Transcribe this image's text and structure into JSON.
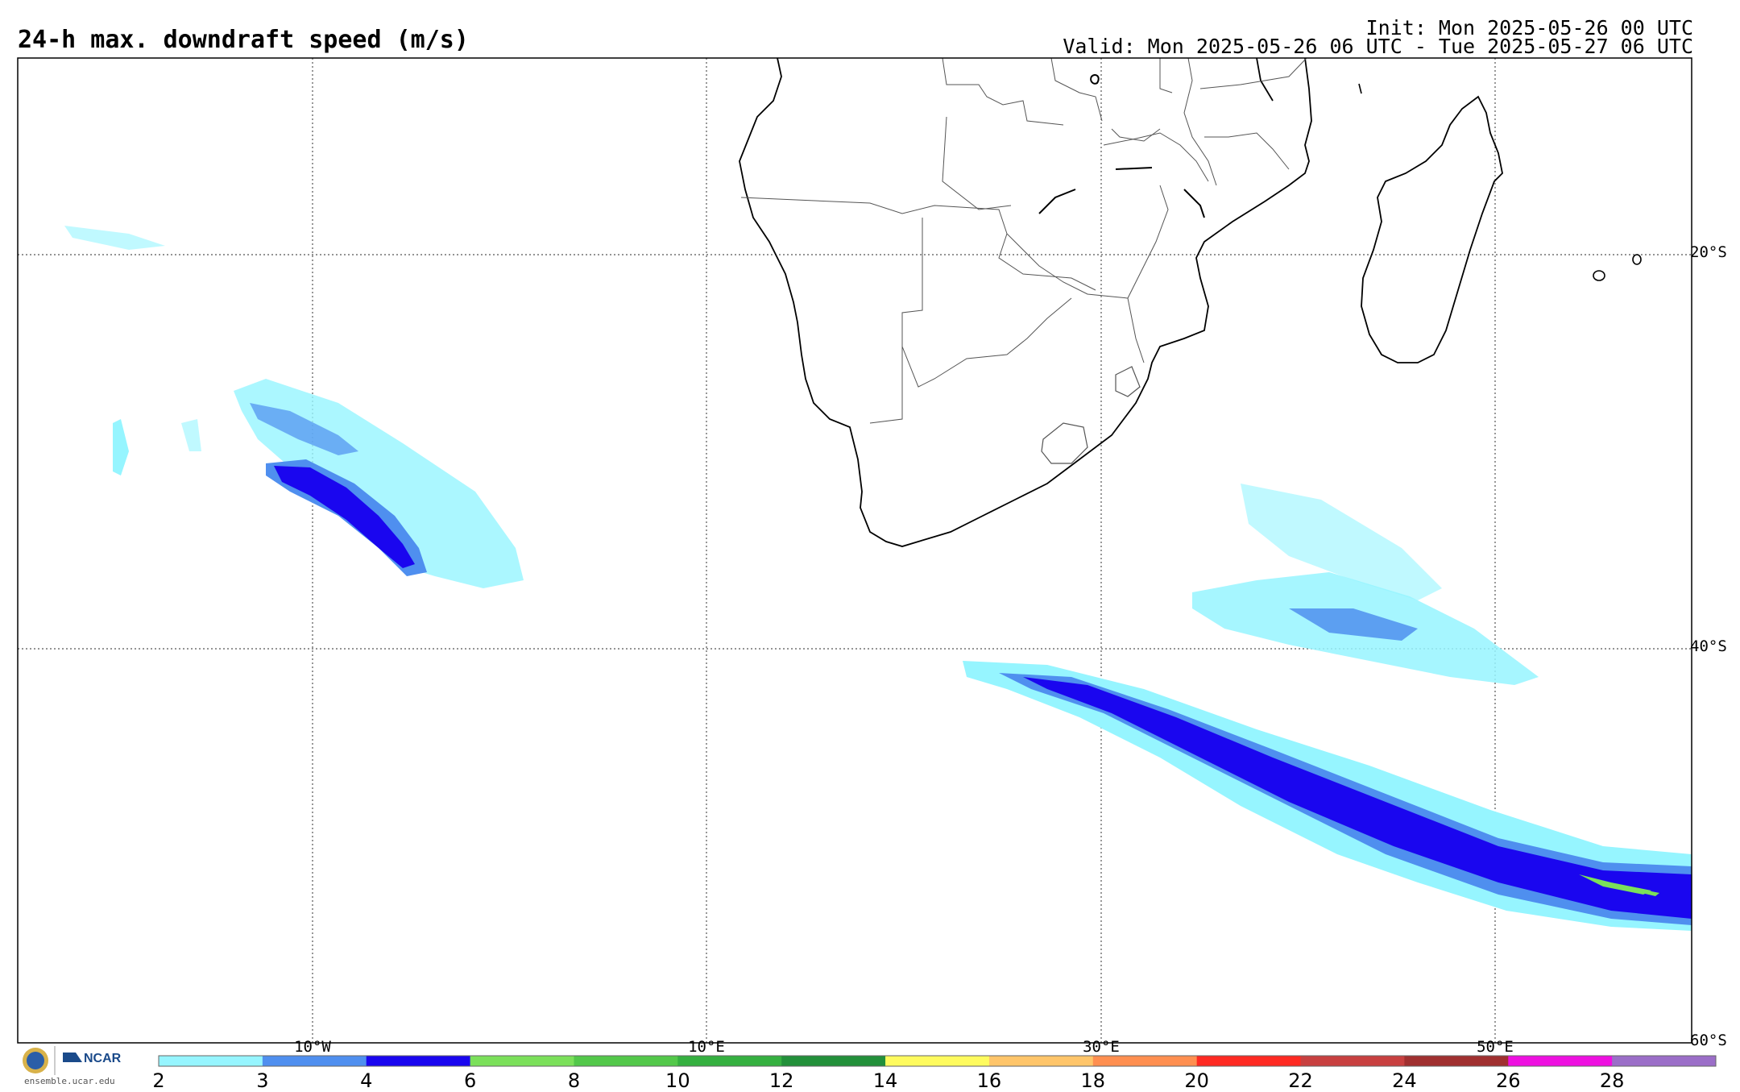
{
  "header": {
    "title": "24-h max. downdraft speed (m/s)",
    "init": "Init: Mon 2025-05-26 00 UTC",
    "valid": "Valid: Mon 2025-05-26 06 UTC - Tue 2025-05-27 06 UTC"
  },
  "map": {
    "lat_labels": [
      "20°S",
      "40°S",
      "60°S"
    ],
    "lon_labels": [
      "10°W",
      "10°E",
      "30°E",
      "50°E"
    ],
    "colors": {
      "light_cyan": "#96f5ff",
      "med_blue": "#4f8fef",
      "dark_blue": "#1a06ef",
      "green": "#7be05a"
    }
  },
  "colorbar": {
    "ticks": [
      "2",
      "3",
      "4",
      "6",
      "8",
      "10",
      "12",
      "14",
      "16",
      "18",
      "20",
      "22",
      "24",
      "26",
      "28"
    ],
    "colors": [
      "#96f5ff",
      "#4f8fef",
      "#1a06ef",
      "#7be05a",
      "#53c84a",
      "#35b040",
      "#22903a",
      "#fffb5e",
      "#ffc56a",
      "#ff8f50",
      "#ff2a22",
      "#c84040",
      "#a03030",
      "#ee10e0",
      "#9b6ec8"
    ]
  },
  "branding": {
    "org": "NCAR",
    "url": "ensemble.ucar.edu"
  }
}
